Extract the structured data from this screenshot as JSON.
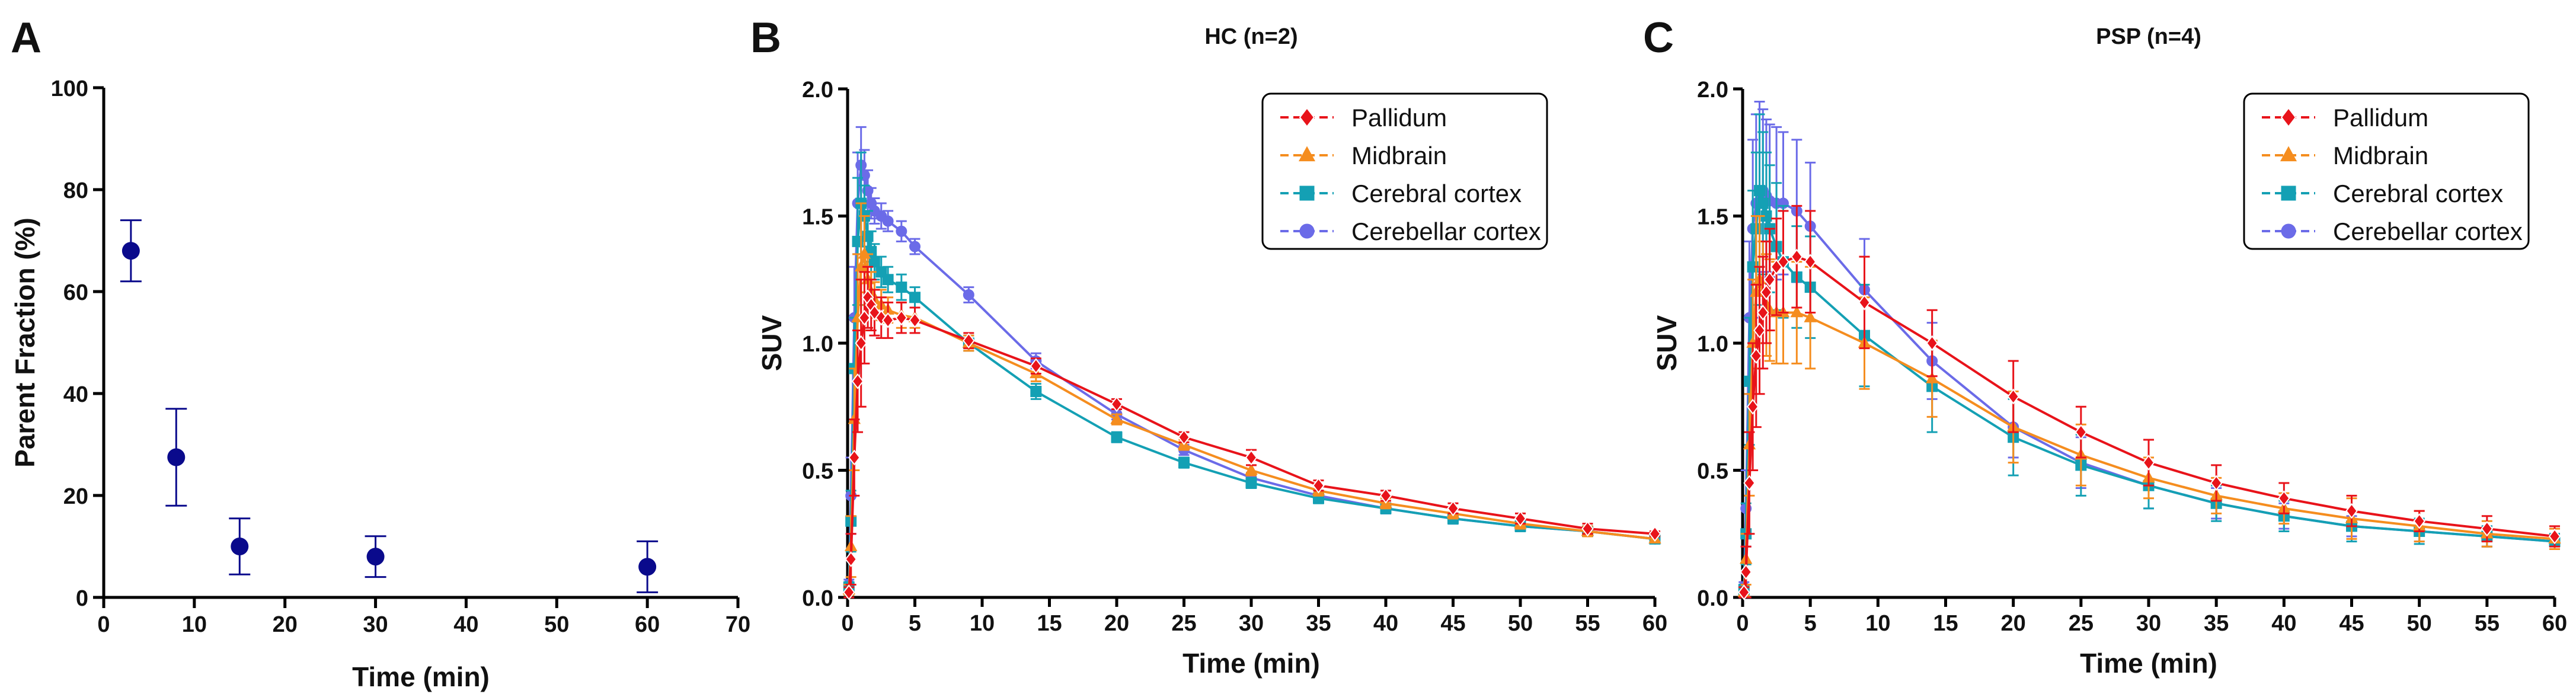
{
  "chart_data": [
    {
      "panel": "A",
      "type": "scatter",
      "title": "",
      "xlabel": "Time (min)",
      "ylabel": "Parent Fraction (%)",
      "xlim": [
        0,
        70
      ],
      "ylim": [
        0,
        100
      ],
      "xticks": [
        0,
        10,
        20,
        30,
        40,
        50,
        60,
        70
      ],
      "yticks": [
        0,
        20,
        40,
        60,
        80,
        100
      ],
      "grid": false,
      "color": "#0a0a8c",
      "series": [
        {
          "name": "Parent fraction",
          "x": [
            3,
            8,
            15,
            30,
            60
          ],
          "y": [
            68,
            27.5,
            10,
            8,
            6
          ],
          "err": [
            6,
            9.5,
            5.5,
            4,
            5
          ]
        }
      ]
    },
    {
      "panel": "B",
      "type": "line",
      "title": "HC (n=2)",
      "xlabel": "Time (min)",
      "ylabel": "SUV",
      "xlim": [
        0,
        60
      ],
      "ylim": [
        0,
        2
      ],
      "xticks": [
        0,
        5,
        10,
        15,
        20,
        25,
        30,
        35,
        40,
        45,
        50,
        55,
        60
      ],
      "yticks": [
        0.0,
        0.5,
        1.0,
        1.5,
        2.0
      ],
      "grid": false,
      "legend_position": "top-right",
      "series": [
        {
          "name": "Pallidum",
          "color": "#e8131a",
          "marker": "diamond",
          "x": [
            0.1,
            0.25,
            0.5,
            0.75,
            1,
            1.25,
            1.5,
            1.75,
            2,
            2.5,
            3,
            4,
            5,
            9,
            14,
            20,
            25,
            30,
            35,
            40,
            45,
            50,
            55,
            60
          ],
          "y": [
            0.02,
            0.15,
            0.55,
            0.85,
            1.0,
            1.1,
            1.18,
            1.15,
            1.12,
            1.1,
            1.09,
            1.1,
            1.09,
            1.01,
            0.91,
            0.76,
            0.63,
            0.55,
            0.44,
            0.4,
            0.35,
            0.31,
            0.27,
            0.25
          ],
          "err": [
            0.02,
            0.1,
            0.15,
            0.2,
            0.25,
            0.18,
            0.12,
            0.1,
            0.09,
            0.08,
            0.07,
            0.06,
            0.05,
            0.03,
            0.03,
            0.02,
            0.02,
            0.03,
            0.02,
            0.02,
            0.02,
            0.02,
            0.02,
            0.01
          ]
        },
        {
          "name": "Midbrain",
          "color": "#f58d1f",
          "marker": "triangle",
          "x": [
            0.1,
            0.25,
            0.5,
            0.75,
            1,
            1.25,
            1.5,
            1.75,
            2,
            2.5,
            3,
            4,
            5,
            9,
            14,
            20,
            25,
            30,
            35,
            40,
            45,
            50,
            55,
            60
          ],
          "y": [
            0.03,
            0.2,
            0.7,
            1.1,
            1.3,
            1.35,
            1.25,
            1.2,
            1.17,
            1.15,
            1.13,
            1.11,
            1.1,
            1.0,
            0.88,
            0.7,
            0.6,
            0.5,
            0.42,
            0.37,
            0.33,
            0.29,
            0.26,
            0.23
          ],
          "err": [
            0.02,
            0.12,
            0.2,
            0.25,
            0.25,
            0.15,
            0.1,
            0.08,
            0.07,
            0.06,
            0.05,
            0.05,
            0.04,
            0.03,
            0.03,
            0.02,
            0.02,
            0.02,
            0.02,
            0.02,
            0.02,
            0.02,
            0.02,
            0.01
          ]
        },
        {
          "name": "Cerebral cortex",
          "color": "#14a0b4",
          "marker": "square",
          "x": [
            0.1,
            0.25,
            0.5,
            0.75,
            1,
            1.25,
            1.5,
            1.75,
            2,
            2.5,
            3,
            4,
            5,
            9,
            14,
            20,
            25,
            30,
            35,
            40,
            45,
            50,
            55,
            60
          ],
          "y": [
            0.04,
            0.3,
            0.9,
            1.4,
            1.55,
            1.5,
            1.42,
            1.36,
            1.32,
            1.28,
            1.25,
            1.22,
            1.18,
            1.0,
            0.81,
            0.63,
            0.53,
            0.45,
            0.39,
            0.35,
            0.31,
            0.28,
            0.26,
            0.23
          ],
          "err": [
            0.02,
            0.12,
            0.2,
            0.25,
            0.2,
            0.12,
            0.1,
            0.08,
            0.07,
            0.06,
            0.05,
            0.05,
            0.04,
            0.03,
            0.03,
            0.02,
            0.02,
            0.02,
            0.02,
            0.02,
            0.02,
            0.02,
            0.02,
            0.01
          ]
        },
        {
          "name": "Cerebellar cortex",
          "color": "#6b6be8",
          "marker": "circle",
          "x": [
            0.1,
            0.25,
            0.5,
            0.75,
            1,
            1.25,
            1.5,
            1.75,
            2,
            2.5,
            3,
            4,
            5,
            9,
            14,
            20,
            25,
            30,
            35,
            40,
            45,
            50,
            55,
            60
          ],
          "y": [
            0.05,
            0.4,
            1.1,
            1.55,
            1.7,
            1.66,
            1.6,
            1.55,
            1.52,
            1.5,
            1.48,
            1.44,
            1.38,
            1.19,
            0.93,
            0.72,
            0.58,
            0.47,
            0.4,
            0.35,
            0.31,
            0.28,
            0.26,
            0.23
          ],
          "err": [
            0.02,
            0.15,
            0.2,
            0.2,
            0.15,
            0.1,
            0.08,
            0.06,
            0.05,
            0.05,
            0.04,
            0.04,
            0.03,
            0.03,
            0.03,
            0.02,
            0.02,
            0.02,
            0.02,
            0.02,
            0.02,
            0.02,
            0.01,
            0.01
          ]
        }
      ]
    },
    {
      "panel": "C",
      "type": "line",
      "title": "PSP (n=4)",
      "xlabel": "Time (min)",
      "ylabel": "SUV",
      "xlim": [
        0,
        60
      ],
      "ylim": [
        0,
        2
      ],
      "xticks": [
        0,
        5,
        10,
        15,
        20,
        25,
        30,
        35,
        40,
        45,
        50,
        55,
        60
      ],
      "yticks": [
        0.0,
        0.5,
        1.0,
        1.5,
        2.0
      ],
      "grid": false,
      "legend_position": "top-right",
      "series": [
        {
          "name": "Pallidum",
          "color": "#e8131a",
          "marker": "diamond",
          "x": [
            0.1,
            0.25,
            0.5,
            0.75,
            1,
            1.25,
            1.5,
            1.75,
            2,
            2.5,
            3,
            4,
            5,
            9,
            14,
            20,
            25,
            30,
            35,
            40,
            45,
            50,
            55,
            60
          ],
          "y": [
            0.02,
            0.1,
            0.45,
            0.75,
            0.95,
            1.05,
            1.12,
            1.2,
            1.25,
            1.3,
            1.32,
            1.34,
            1.32,
            1.16,
            1.0,
            0.79,
            0.65,
            0.53,
            0.45,
            0.39,
            0.34,
            0.3,
            0.27,
            0.24
          ],
          "err": [
            0.02,
            0.1,
            0.2,
            0.25,
            0.28,
            0.25,
            0.22,
            0.2,
            0.2,
            0.19,
            0.2,
            0.2,
            0.2,
            0.18,
            0.13,
            0.14,
            0.1,
            0.09,
            0.07,
            0.06,
            0.06,
            0.04,
            0.05,
            0.04
          ]
        },
        {
          "name": "Midbrain",
          "color": "#f58d1f",
          "marker": "triangle",
          "x": [
            0.1,
            0.25,
            0.5,
            0.75,
            1,
            1.25,
            1.5,
            1.75,
            2,
            2.5,
            3,
            4,
            5,
            9,
            14,
            20,
            25,
            30,
            35,
            40,
            45,
            50,
            55,
            60
          ],
          "y": [
            0.02,
            0.15,
            0.6,
            1.0,
            1.2,
            1.25,
            1.2,
            1.15,
            1.13,
            1.12,
            1.12,
            1.12,
            1.1,
            1.0,
            0.86,
            0.67,
            0.56,
            0.47,
            0.4,
            0.35,
            0.31,
            0.28,
            0.25,
            0.23
          ],
          "err": [
            0.02,
            0.1,
            0.2,
            0.25,
            0.3,
            0.25,
            0.2,
            0.2,
            0.2,
            0.2,
            0.2,
            0.2,
            0.2,
            0.18,
            0.15,
            0.14,
            0.12,
            0.08,
            0.07,
            0.06,
            0.08,
            0.06,
            0.05,
            0.04
          ]
        },
        {
          "name": "Cerebral cortex",
          "color": "#14a0b4",
          "marker": "square",
          "x": [
            0.1,
            0.25,
            0.5,
            0.75,
            1,
            1.25,
            1.5,
            1.75,
            2,
            2.5,
            3,
            4,
            5,
            9,
            14,
            20,
            25,
            30,
            35,
            40,
            45,
            50,
            55,
            60
          ],
          "y": [
            0.03,
            0.25,
            0.85,
            1.3,
            1.45,
            1.6,
            1.55,
            1.5,
            1.45,
            1.38,
            1.32,
            1.26,
            1.22,
            1.03,
            0.83,
            0.63,
            0.52,
            0.44,
            0.37,
            0.32,
            0.28,
            0.26,
            0.24,
            0.22
          ],
          "err": [
            0.02,
            0.12,
            0.25,
            0.3,
            0.3,
            0.3,
            0.28,
            0.25,
            0.25,
            0.25,
            0.22,
            0.2,
            0.2,
            0.2,
            0.18,
            0.15,
            0.12,
            0.09,
            0.07,
            0.06,
            0.06,
            0.05,
            0.04,
            0.03
          ]
        },
        {
          "name": "Cerebellar cortex",
          "color": "#6b6be8",
          "marker": "circle",
          "x": [
            0.1,
            0.25,
            0.5,
            0.75,
            1,
            1.25,
            1.5,
            1.75,
            2,
            2.5,
            3,
            4,
            5,
            9,
            14,
            20,
            25,
            30,
            35,
            40,
            45,
            50,
            55,
            60
          ],
          "y": [
            0.04,
            0.35,
            1.1,
            1.45,
            1.55,
            1.6,
            1.6,
            1.58,
            1.56,
            1.55,
            1.55,
            1.52,
            1.46,
            1.21,
            0.93,
            0.67,
            0.53,
            0.44,
            0.37,
            0.32,
            0.28,
            0.26,
            0.24,
            0.22
          ],
          "err": [
            0.02,
            0.15,
            0.3,
            0.35,
            0.35,
            0.35,
            0.32,
            0.3,
            0.3,
            0.3,
            0.28,
            0.28,
            0.25,
            0.2,
            0.15,
            0.12,
            0.1,
            0.09,
            0.06,
            0.05,
            0.04,
            0.04,
            0.04,
            0.03
          ]
        }
      ]
    }
  ],
  "panels": {
    "a": {
      "letter": "A"
    },
    "b": {
      "letter": "B"
    },
    "c": {
      "letter": "C"
    }
  }
}
